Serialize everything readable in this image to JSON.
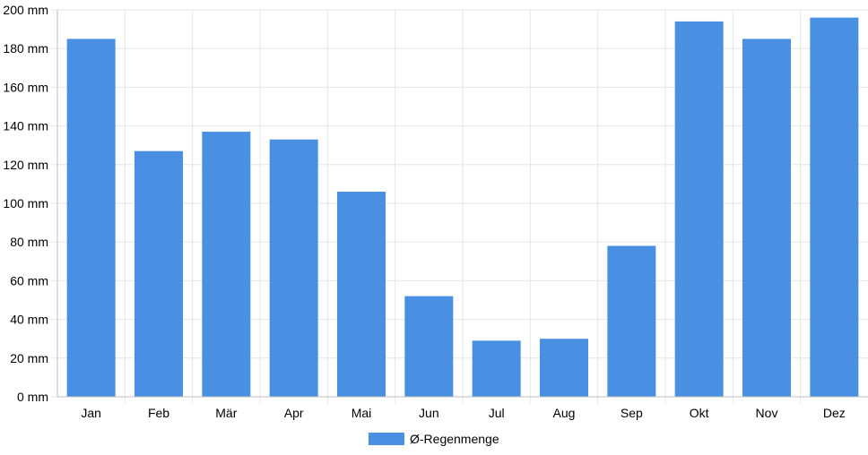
{
  "chart_data": {
    "type": "bar",
    "categories": [
      "Jan",
      "Feb",
      "Mär",
      "Apr",
      "Mai",
      "Jun",
      "Jul",
      "Aug",
      "Sep",
      "Okt",
      "Nov",
      "Dez"
    ],
    "series": [
      {
        "name": "Ø-Regenmenge",
        "values": [
          185,
          127,
          137,
          133,
          106,
          52,
          29,
          30,
          78,
          194,
          185,
          196
        ],
        "color": "#4a90e2"
      }
    ],
    "y_ticks": [
      "0 mm",
      "20 mm",
      "40 mm",
      "60 mm",
      "80 mm",
      "100 mm",
      "120 mm",
      "140 mm",
      "160 mm",
      "180 mm",
      "200 mm"
    ],
    "ylim": [
      0,
      200
    ],
    "y_step": 20,
    "grid": true,
    "legend_position": "bottom"
  },
  "legend": {
    "label": "Ø-Regenmenge",
    "color": "#4a90e2"
  }
}
